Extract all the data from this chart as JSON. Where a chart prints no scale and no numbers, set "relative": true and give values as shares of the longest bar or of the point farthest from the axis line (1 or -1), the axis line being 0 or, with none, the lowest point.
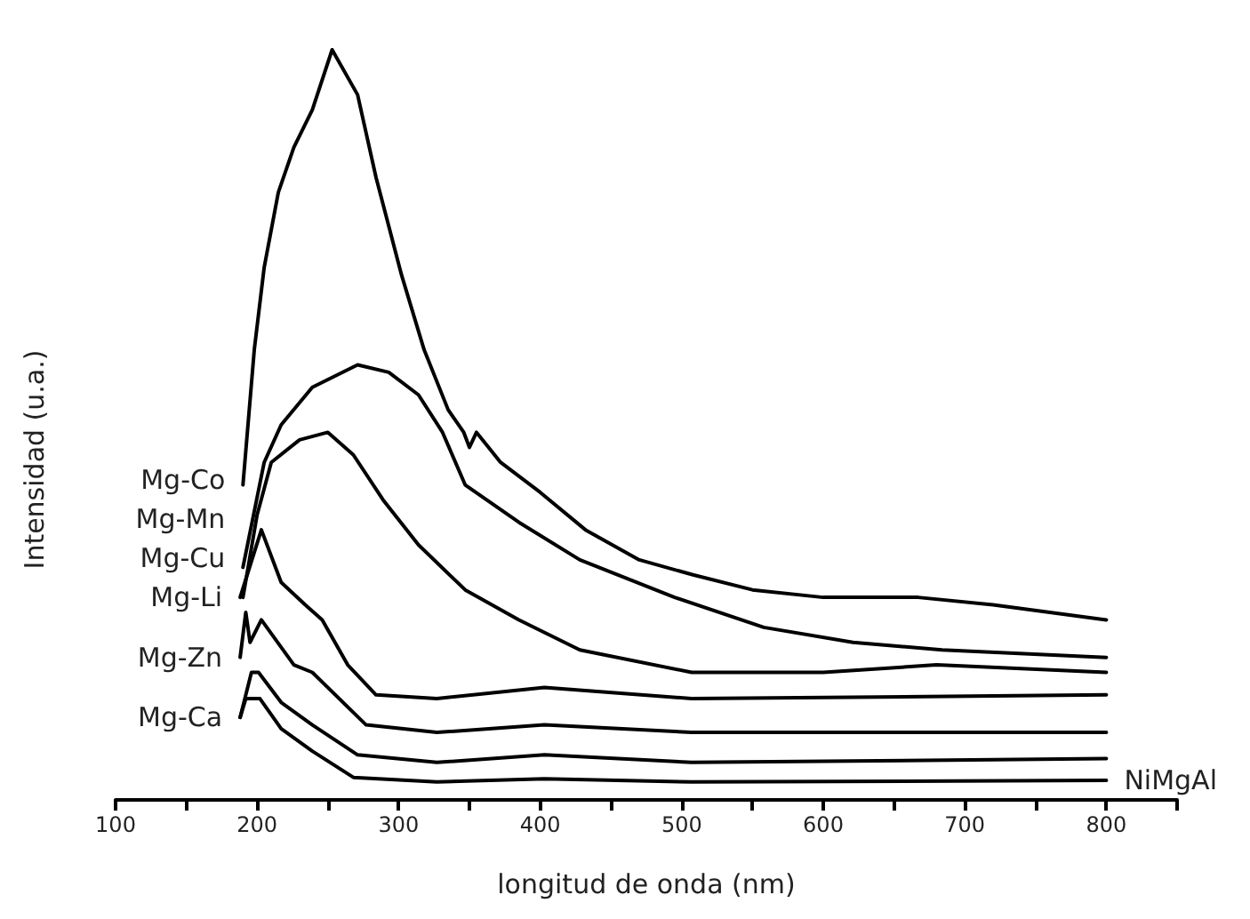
{
  "chart_data": {
    "type": "line",
    "relative": true,
    "xlabel": "longitud de onda (nm)",
    "ylabel": "Intensidad (u.a.)",
    "xlim": [
      100,
      850
    ],
    "xticks": [
      100,
      {
        "value": 150,
        "label": null
      },
      200,
      {
        "value": 250,
        "label": null
      },
      300,
      {
        "value": 350,
        "label": null
      },
      400,
      {
        "value": 450,
        "label": null
      },
      500,
      {
        "value": 550,
        "label": null
      },
      600,
      {
        "value": 650,
        "label": null
      },
      700,
      {
        "value": 750,
        "label": null
      },
      800,
      {
        "value": 850,
        "label": null
      }
    ],
    "marker": "none",
    "grid": false,
    "legend": false,
    "series": [
      {
        "name": "Mg-Co",
        "color": "#000000",
        "x": [
          190,
          198,
          205,
          215,
          226,
          239,
          253,
          271,
          284,
          302,
          318,
          335,
          346,
          350,
          355,
          372,
          400,
          432,
          470,
          508,
          550,
          600,
          667,
          720,
          760,
          800
        ],
        "values": [
          0.42,
          0.6,
          0.71,
          0.81,
          0.87,
          0.92,
          1,
          0.94,
          0.83,
          0.7,
          0.6,
          0.52,
          0.49,
          0.47,
          0.49,
          0.45,
          0.41,
          0.36,
          0.32,
          0.3,
          0.28,
          0.27,
          0.27,
          0.26,
          0.25,
          0.24
        ]
      },
      {
        "name": "Mg-Mn",
        "color": "#000000",
        "x": [
          190,
          205,
          217,
          239,
          271,
          293,
          314,
          331,
          347,
          385,
          428,
          495,
          558,
          621,
          684,
          800
        ],
        "values": [
          0.31,
          0.45,
          0.5,
          0.55,
          0.58,
          0.57,
          0.54,
          0.49,
          0.42,
          0.37,
          0.32,
          0.27,
          0.23,
          0.21,
          0.2,
          0.19
        ]
      },
      {
        "name": "Mg-Cu",
        "color": "#000000",
        "x": [
          190,
          200,
          210,
          230,
          250,
          268,
          289,
          314,
          347,
          385,
          428,
          507,
          540,
          600,
          680,
          800
        ],
        "values": [
          0.27,
          0.38,
          0.45,
          0.48,
          0.49,
          0.46,
          0.4,
          0.34,
          0.28,
          0.24,
          0.2,
          0.17,
          0.17,
          0.17,
          0.18,
          0.17
        ]
      },
      {
        "name": "Mg-Li",
        "color": "#000000",
        "x": [
          188,
          203,
          217,
          234,
          246,
          264,
          284,
          327,
          403,
          507,
          800
        ],
        "values": [
          0.27,
          0.36,
          0.29,
          0.26,
          0.24,
          0.18,
          0.14,
          0.135,
          0.15,
          0.135,
          0.14
        ]
      },
      {
        "name": "Mg-Zn",
        "color": "#000000",
        "x": [
          188,
          192,
          195,
          203,
          226,
          239,
          277,
          327,
          403,
          507,
          800
        ],
        "values": [
          0.19,
          0.25,
          0.21,
          0.24,
          0.18,
          0.17,
          0.1,
          0.09,
          0.1,
          0.09,
          0.09
        ]
      },
      {
        "name": "Mg-Ca",
        "color": "#000000",
        "x": [
          188,
          196,
          201,
          217,
          239,
          271,
          327,
          403,
          507,
          800
        ],
        "values": [
          0.11,
          0.17,
          0.17,
          0.13,
          0.1,
          0.06,
          0.05,
          0.06,
          0.05,
          0.055
        ]
      },
      {
        "name": "NiMgAl",
        "color": "#000000",
        "x": [
          188,
          192,
          202,
          217,
          239,
          268,
          327,
          403,
          507,
          800
        ],
        "values": [
          0.11,
          0.135,
          0.135,
          0.095,
          0.065,
          0.03,
          0.024,
          0.028,
          0.024,
          0.026
        ]
      }
    ]
  }
}
